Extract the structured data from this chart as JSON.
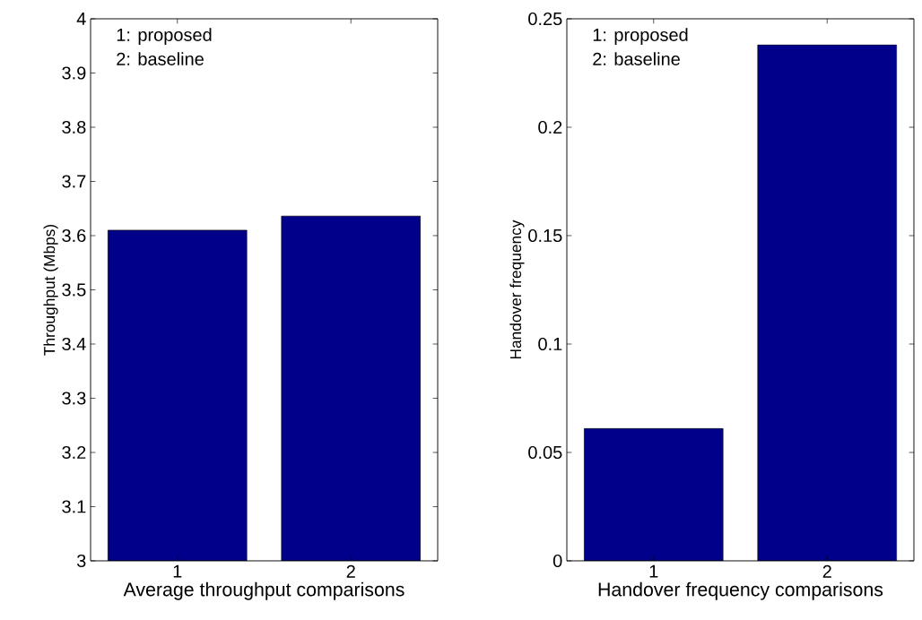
{
  "chart_data": [
    {
      "type": "bar",
      "categories": [
        "1",
        "2"
      ],
      "values": [
        3.61,
        3.636
      ],
      "color": "#00008b",
      "ylim": [
        3,
        4
      ],
      "yticks": [
        3,
        3.1,
        3.2,
        3.3,
        3.4,
        3.5,
        3.6,
        3.7,
        3.8,
        3.9,
        4
      ],
      "xlabel": "Average throughput comparisons",
      "ylabel": "Throughput (Mbps)",
      "annotations": [
        "1: proposed",
        "2: baseline"
      ]
    },
    {
      "type": "bar",
      "categories": [
        "1",
        "2"
      ],
      "values": [
        0.061,
        0.238
      ],
      "color": "#00008b",
      "ylim": [
        0,
        0.25
      ],
      "yticks": [
        0,
        0.05,
        0.1,
        0.15,
        0.2,
        0.25
      ],
      "xlabel": "Handover frequency comparisons",
      "ylabel": "Handover frequency",
      "annotations": [
        "1: proposed",
        "2: baseline"
      ]
    }
  ]
}
